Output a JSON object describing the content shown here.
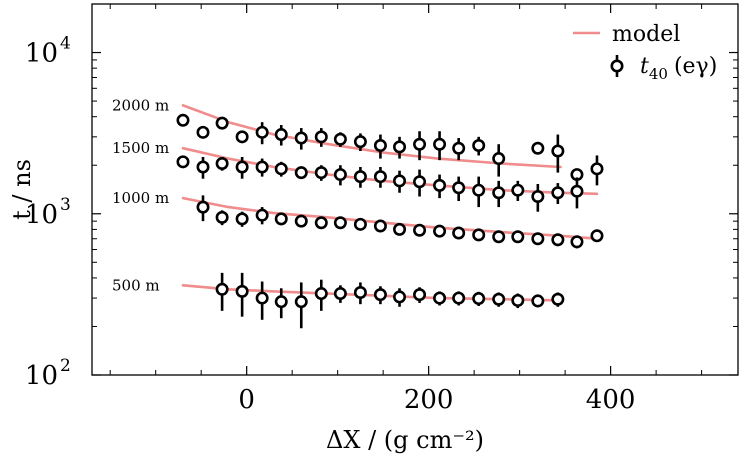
{
  "chart_data": {
    "type": "scatter",
    "title": "",
    "xlabel": "ΔX / (g cm⁻²)",
    "ylabel": "t / ns",
    "xlim": [
      -170,
      540
    ],
    "ylim": [
      100,
      20000
    ],
    "yscale": "log",
    "x_ticks": [
      0,
      200,
      400
    ],
    "x_tick_labels": [
      "0",
      "200",
      "400"
    ],
    "y_ticks": [
      {
        "value": 100,
        "base": "10",
        "exp": "2"
      },
      {
        "value": 1000,
        "base": "10",
        "exp": "3"
      },
      {
        "value": 10000,
        "base": "10",
        "exp": "4"
      }
    ],
    "legend": {
      "placement": "top-right",
      "entries": [
        {
          "label": "model",
          "kind": "line",
          "color": "#f08c8c"
        },
        {
          "label_main": "t",
          "label_sub": "40",
          "label_rest": "(eγ)",
          "kind": "errorbar-marker",
          "color": "#000000"
        }
      ]
    },
    "series": [
      {
        "label": "2000 m",
        "model": {
          "x": [
            -70,
            345
          ],
          "y_start": 4700,
          "y_end": 1950,
          "curve_y": [
            4700,
            3700,
            3100,
            2700,
            2400,
            2200,
            2050,
            1950
          ],
          "curve_x": [
            -70,
            -20,
            30,
            90,
            150,
            210,
            280,
            345
          ]
        },
        "points": [
          {
            "x": -70,
            "y": 3800,
            "err": 0
          },
          {
            "x": -48,
            "y": 3200,
            "err": 250
          },
          {
            "x": -27,
            "y": 3650,
            "err": 0
          },
          {
            "x": -5,
            "y": 3000,
            "err": 0
          },
          {
            "x": 17,
            "y": 3200,
            "err": 500
          },
          {
            "x": 38,
            "y": 3100,
            "err": 450
          },
          {
            "x": 60,
            "y": 2950,
            "err": 450
          },
          {
            "x": 82,
            "y": 3000,
            "err": 400
          },
          {
            "x": 103,
            "y": 2900,
            "err": 300
          },
          {
            "x": 125,
            "y": 2800,
            "err": 350
          },
          {
            "x": 147,
            "y": 2650,
            "err": 450
          },
          {
            "x": 168,
            "y": 2600,
            "err": 400
          },
          {
            "x": 190,
            "y": 2700,
            "err": 550
          },
          {
            "x": 212,
            "y": 2700,
            "err": 550
          },
          {
            "x": 233,
            "y": 2550,
            "err": 400
          },
          {
            "x": 255,
            "y": 2650,
            "err": 350
          },
          {
            "x": 277,
            "y": 2200,
            "err": 500
          },
          {
            "x": 320,
            "y": 2550,
            "err": 0
          },
          {
            "x": 342,
            "y": 2450,
            "err": 650
          }
        ]
      },
      {
        "label": "1500 m",
        "model": {
          "curve_y": [
            2550,
            2200,
            1950,
            1750,
            1600,
            1500,
            1400,
            1350,
            1330
          ],
          "curve_x": [
            -70,
            -20,
            30,
            90,
            150,
            210,
            280,
            345,
            385
          ]
        },
        "points": [
          {
            "x": -70,
            "y": 2100,
            "err": 0
          },
          {
            "x": -48,
            "y": 1950,
            "err": 300
          },
          {
            "x": -27,
            "y": 2050,
            "err": 200
          },
          {
            "x": -5,
            "y": 1950,
            "err": 300
          },
          {
            "x": 17,
            "y": 1950,
            "err": 250
          },
          {
            "x": 38,
            "y": 1900,
            "err": 200
          },
          {
            "x": 60,
            "y": 1800,
            "err": 0
          },
          {
            "x": 82,
            "y": 1800,
            "err": 200
          },
          {
            "x": 103,
            "y": 1750,
            "err": 250
          },
          {
            "x": 125,
            "y": 1700,
            "err": 250
          },
          {
            "x": 147,
            "y": 1700,
            "err": 250
          },
          {
            "x": 168,
            "y": 1600,
            "err": 250
          },
          {
            "x": 190,
            "y": 1580,
            "err": 300
          },
          {
            "x": 212,
            "y": 1500,
            "err": 250
          },
          {
            "x": 233,
            "y": 1450,
            "err": 250
          },
          {
            "x": 255,
            "y": 1400,
            "err": 300
          },
          {
            "x": 277,
            "y": 1350,
            "err": 250
          },
          {
            "x": 298,
            "y": 1400,
            "err": 200
          },
          {
            "x": 320,
            "y": 1280,
            "err": 250
          },
          {
            "x": 342,
            "y": 1350,
            "err": 200
          },
          {
            "x": 363,
            "y": 1750,
            "err": 0
          },
          {
            "x": 363,
            "y": 1380,
            "err": 300
          },
          {
            "x": 385,
            "y": 1900,
            "err": 400
          }
        ]
      },
      {
        "label": "1000 m",
        "model": {
          "curve_y": [
            1250,
            1100,
            1010,
            950,
            880,
            820,
            770,
            730,
            700
          ],
          "curve_x": [
            -70,
            -20,
            30,
            90,
            150,
            210,
            280,
            345,
            385
          ]
        },
        "points": [
          {
            "x": -48,
            "y": 1100,
            "err": 200
          },
          {
            "x": -27,
            "y": 950,
            "err": 100
          },
          {
            "x": -5,
            "y": 930,
            "err": 100
          },
          {
            "x": 17,
            "y": 980,
            "err": 120
          },
          {
            "x": 38,
            "y": 930,
            "err": 80
          },
          {
            "x": 60,
            "y": 900,
            "err": 60
          },
          {
            "x": 82,
            "y": 880,
            "err": 60
          },
          {
            "x": 103,
            "y": 880,
            "err": 60
          },
          {
            "x": 125,
            "y": 860,
            "err": 60
          },
          {
            "x": 147,
            "y": 840,
            "err": 60
          },
          {
            "x": 168,
            "y": 800,
            "err": 60
          },
          {
            "x": 190,
            "y": 790,
            "err": 60
          },
          {
            "x": 212,
            "y": 780,
            "err": 60
          },
          {
            "x": 233,
            "y": 760,
            "err": 60
          },
          {
            "x": 255,
            "y": 740,
            "err": 60
          },
          {
            "x": 277,
            "y": 720,
            "err": 60
          },
          {
            "x": 298,
            "y": 720,
            "err": 60
          },
          {
            "x": 320,
            "y": 700,
            "err": 60
          },
          {
            "x": 342,
            "y": 690,
            "err": 60
          },
          {
            "x": 363,
            "y": 670,
            "err": 60
          },
          {
            "x": 385,
            "y": 730,
            "err": 0
          }
        ]
      },
      {
        "label": "500 m",
        "model": {
          "curve_y": [
            360,
            340,
            330,
            320,
            310,
            300,
            295,
            290
          ],
          "curve_x": [
            -70,
            -20,
            30,
            90,
            150,
            210,
            280,
            345
          ]
        },
        "points": [
          {
            "x": -27,
            "y": 340,
            "err": 90
          },
          {
            "x": -5,
            "y": 330,
            "err": 100
          },
          {
            "x": 17,
            "y": 300,
            "err": 80
          },
          {
            "x": 38,
            "y": 285,
            "err": 60
          },
          {
            "x": 60,
            "y": 285,
            "err": 90
          },
          {
            "x": 82,
            "y": 320,
            "err": 70
          },
          {
            "x": 103,
            "y": 320,
            "err": 40
          },
          {
            "x": 125,
            "y": 325,
            "err": 50
          },
          {
            "x": 147,
            "y": 315,
            "err": 40
          },
          {
            "x": 168,
            "y": 305,
            "err": 40
          },
          {
            "x": 190,
            "y": 315,
            "err": 35
          },
          {
            "x": 212,
            "y": 300,
            "err": 30
          },
          {
            "x": 233,
            "y": 300,
            "err": 30
          },
          {
            "x": 255,
            "y": 298,
            "err": 30
          },
          {
            "x": 277,
            "y": 295,
            "err": 30
          },
          {
            "x": 298,
            "y": 290,
            "err": 30
          },
          {
            "x": 320,
            "y": 288,
            "err": 25
          },
          {
            "x": 342,
            "y": 295,
            "err": 30
          }
        ]
      }
    ],
    "colors": {
      "model": "#f08c8c",
      "points": "#000000"
    }
  }
}
